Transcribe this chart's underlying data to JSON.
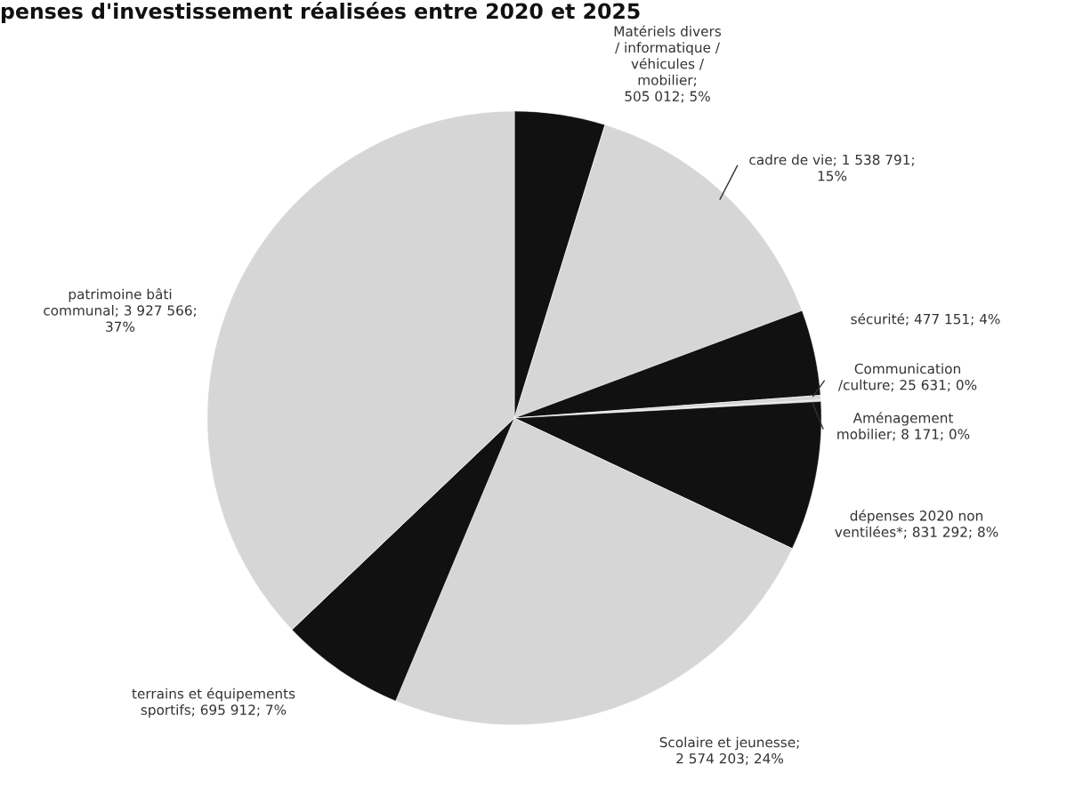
{
  "chart_data": {
    "type": "pie",
    "title": "penses d'investissement réalisées entre 2020 et 2025",
    "categories": [
      "Matériels divers\n/ informatique /\nvéhicules /\nmobilier",
      "cadre de vie",
      "sécurité",
      "Communication\n/culture",
      "Aménagement\nmobilier",
      "dépenses 2020 non\nventilées*",
      "Scolaire et jeunesse",
      "terrains et équipements\nsportifs",
      "patrimoine bâti\ncommunal"
    ],
    "values": [
      505012,
      1538791,
      477151,
      25631,
      8171,
      831292,
      2574203,
      695912,
      3927566
    ],
    "value_labels": [
      ";\n505 012; 5%",
      "; 1 538 791;\n15%",
      "; 477 151; 4%",
      "; 25 631; 0%",
      "; 8 171; 0%",
      "; 831 292; 8%",
      ";\n2 574 203; 24%",
      "; 695 912; 7%",
      "; 3 927 566;\n37%"
    ],
    "colors": [
      "#111111",
      "#d6d6d6",
      "#111111",
      "#d6d6d6",
      "#d6d6d6",
      "#111111",
      "#d6d6d6",
      "#111111",
      "#d6d6d6"
    ]
  }
}
